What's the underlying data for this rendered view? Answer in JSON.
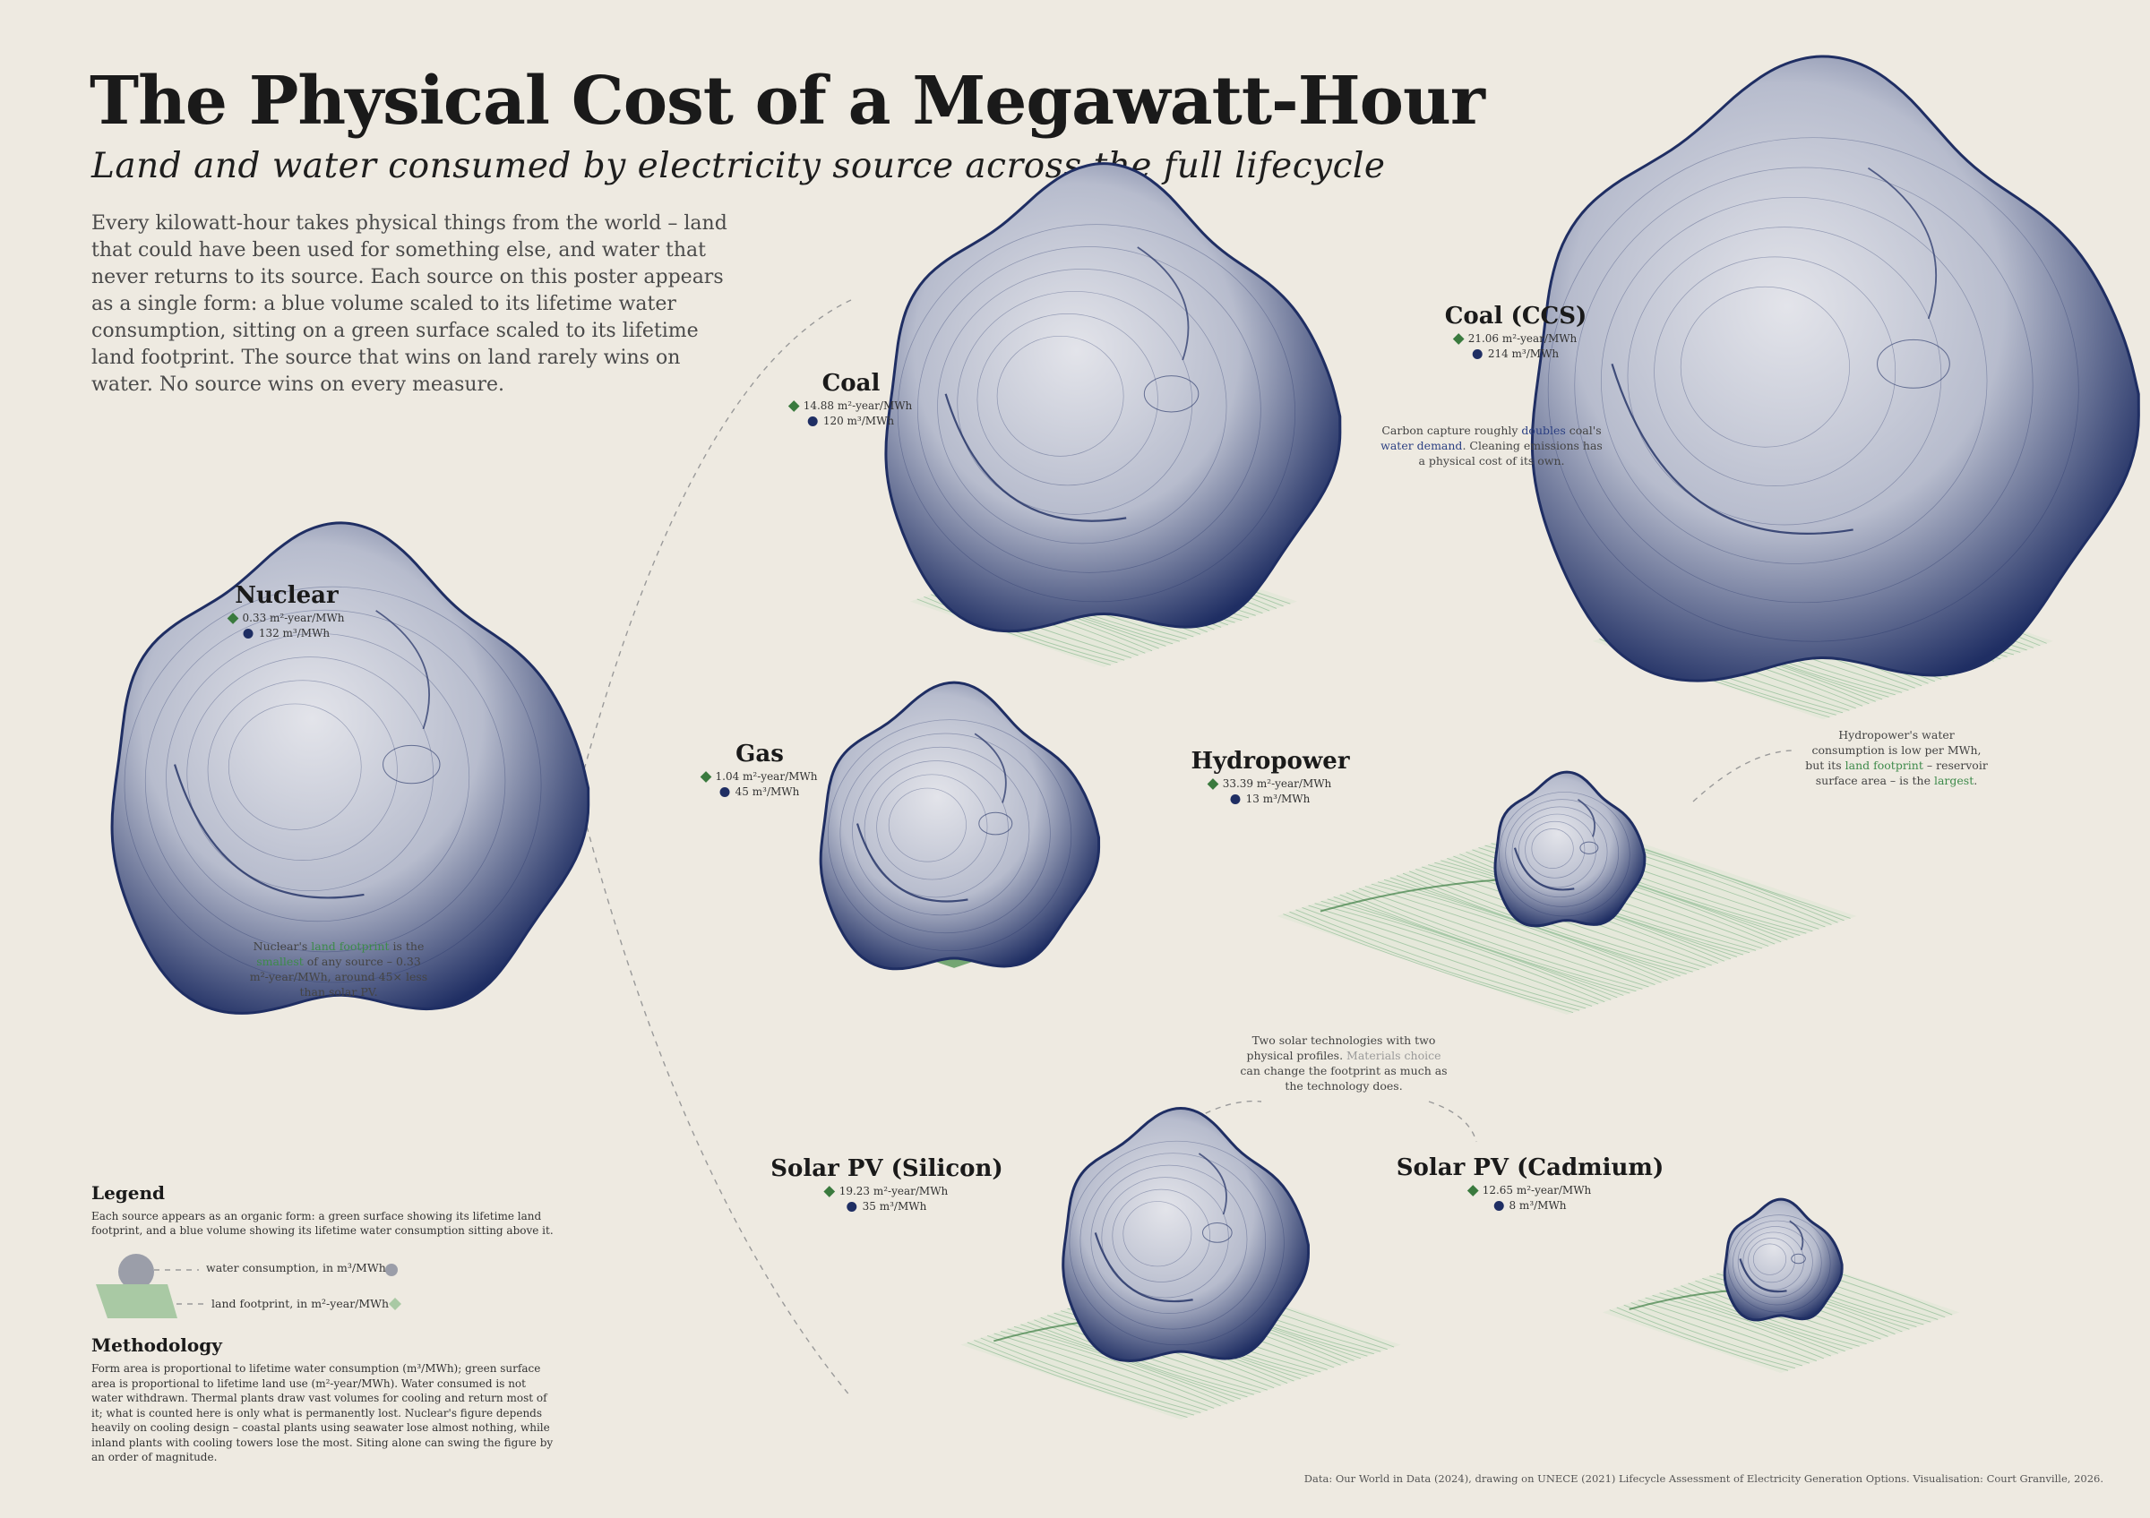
{
  "header": {
    "title": "The Physical Cost of a Megawatt-Hour",
    "subtitle": "Land and water consumed by electricity source across the full lifecycle",
    "intro": "Every kilowatt-hour takes physical things from the world – land that could have been used for something else, and water that never returns to its source. Each source on this poster appears as a single form: a blue volume scaled to its lifetime water consumption, sitting on a green surface scaled to its lifetime land footprint. The source that wins on land rarely wins on water. No source wins on every measure."
  },
  "colors": {
    "background": "#eeeae1",
    "water_blue": "#1f2e63",
    "land_green": "#3a7a3e",
    "surface_green": "#9cc39f"
  },
  "chart_data": {
    "type": "scatter",
    "title": "The Physical Cost of a Megawatt-Hour",
    "subtitle": "Land and water consumed by electricity source across the full lifecycle",
    "series": [
      {
        "name": "land footprint, in m²-year/MWh",
        "values": [
          0.33,
          14.88,
          21.06,
          1.04,
          33.39,
          19.23,
          12.65
        ]
      },
      {
        "name": "water consumption, in m³/MWh",
        "values": [
          132,
          120,
          214,
          45,
          13,
          35,
          8
        ]
      }
    ],
    "categories": [
      "Nuclear",
      "Coal",
      "Coal (CCS)",
      "Gas",
      "Hydropower",
      "Solar PV (Silicon)",
      "Solar PV (Cadmium)"
    ]
  },
  "sources": [
    {
      "key": "nuclear",
      "name": "Nuclear",
      "land": "0.33 m²-year/MWh",
      "water": "132 m³/MWh"
    },
    {
      "key": "coal",
      "name": "Coal",
      "land": "14.88 m²-year/MWh",
      "water": "120 m³/MWh"
    },
    {
      "key": "coalccs",
      "name": "Coal (CCS)",
      "land": "21.06  m²-year/MWh",
      "water": "214 m³/MWh"
    },
    {
      "key": "gas",
      "name": "Gas",
      "land": "1.04 m²-year/MWh",
      "water": "45 m³/MWh"
    },
    {
      "key": "hydro",
      "name": "Hydropower",
      "land": "33.39 m²-year/MWh",
      "water": "13 m³/MWh"
    },
    {
      "key": "pvsi",
      "name": "Solar PV (Silicon)",
      "land": "19.23 m²-year/MWh",
      "water": "35 m³/MWh"
    },
    {
      "key": "pvcd",
      "name": "Solar PV (Cadmium)",
      "land": "12.65 m²-year/MWh",
      "water": "8 m³/MWh"
    }
  ],
  "notes": {
    "nuclear": [
      "Nuclear's ",
      "land footprint",
      " is the ",
      "smallest",
      " of any source – 0.33 m²-year/MWh, around 45× less than solar PV."
    ],
    "coalccs": [
      "Carbon capture roughly ",
      "doubles",
      " coal's ",
      "water demand",
      ". Cleaning emissions has a physical cost of its own."
    ],
    "hydro": [
      "Hydropower's water consumption is low per MWh, but its ",
      "land footprint",
      " – reservoir surface area – is the ",
      "largest",
      "."
    ],
    "solar": [
      "Two solar technologies with two physical profiles. ",
      "Materials choice",
      " can change the footprint as much as the technology does."
    ]
  },
  "legend": {
    "title": "Legend",
    "description": "Each source appears as an organic form: a green surface showing its lifetime land footprint, and a blue volume showing its lifetime water consumption sitting above it.",
    "water_label": "water consumption, in m³/MWh",
    "land_label": "land footprint, in m²-year/MWh"
  },
  "methodology": {
    "title": "Methodology",
    "body": "Form area is proportional to lifetime water consumption (m³/MWh); green surface area is proportional to lifetime land use (m²-year/MWh). Water consumed is not water withdrawn. Thermal plants draw vast volumes for cooling and return most of it; what is counted here is only what is permanently lost. Nuclear's figure depends heavily on cooling design – coastal plants using seawater lose almost nothing, while inland plants with cooling towers lose the most. Siting alone can swing the figure by an order of magnitude."
  },
  "credit": "Data: Our World in Data (2024), drawing on UNECE (2021) Lifecycle Assessment of Electricity Generation Options. Visualisation: Court Granville, 2026."
}
